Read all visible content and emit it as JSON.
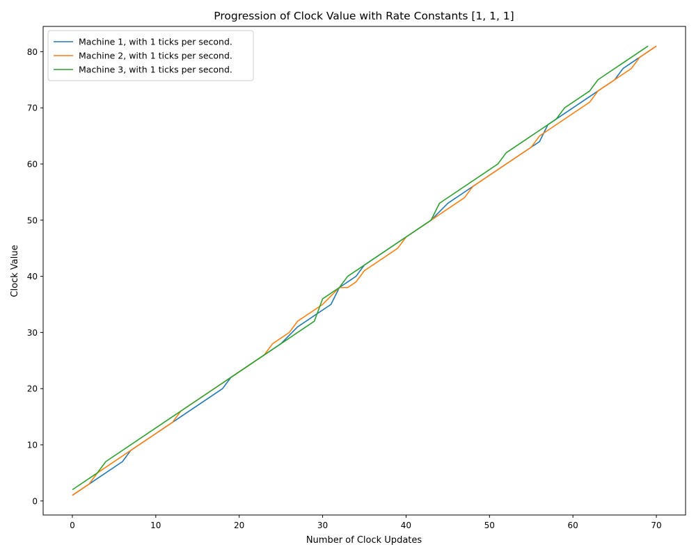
{
  "chart_data": {
    "type": "line",
    "title": "Progression of Clock Value with Rate Constants [1, 1, 1]",
    "xlabel": "Number of Clock Updates",
    "ylabel": "Clock Value",
    "xlim": [
      -3.5,
      73.5
    ],
    "ylim": [
      -2.5,
      84.5
    ],
    "xticks": [
      0,
      10,
      20,
      30,
      40,
      50,
      60,
      70
    ],
    "yticks": [
      0,
      10,
      20,
      30,
      40,
      50,
      60,
      70,
      80
    ],
    "grid": false,
    "legend_position": "top-left",
    "series": [
      {
        "name": "Machine 1, with 1 ticks per second.",
        "color": "#1f77b4",
        "points": [
          [
            0,
            1
          ],
          [
            2,
            3
          ],
          [
            6,
            7
          ],
          [
            7,
            9
          ],
          [
            12,
            14
          ],
          [
            13,
            15
          ],
          [
            18,
            20
          ],
          [
            19,
            22
          ],
          [
            25,
            28
          ],
          [
            27,
            31
          ],
          [
            31,
            35
          ],
          [
            32,
            38
          ],
          [
            34,
            40
          ],
          [
            35,
            42
          ],
          [
            40,
            47
          ],
          [
            43,
            50
          ],
          [
            45,
            53
          ],
          [
            47,
            55
          ],
          [
            48,
            56
          ],
          [
            55,
            63
          ],
          [
            56,
            64
          ],
          [
            57,
            67
          ],
          [
            58,
            68
          ],
          [
            63,
            73
          ],
          [
            65,
            75
          ],
          [
            66,
            77
          ],
          [
            68,
            79
          ],
          [
            70,
            81
          ]
        ]
      },
      {
        "name": "Machine 2, with 1 ticks per second.",
        "color": "#ff7f0e",
        "points": [
          [
            0,
            1
          ],
          [
            2,
            3
          ],
          [
            3,
            5
          ],
          [
            12,
            14
          ],
          [
            13,
            16
          ],
          [
            18,
            21
          ],
          [
            19,
            22
          ],
          [
            23,
            26
          ],
          [
            24,
            28
          ],
          [
            26,
            30
          ],
          [
            27,
            32
          ],
          [
            30,
            35
          ],
          [
            32,
            38
          ],
          [
            33,
            38
          ],
          [
            34,
            39
          ],
          [
            35,
            41
          ],
          [
            39,
            45
          ],
          [
            40,
            47
          ],
          [
            43,
            50
          ],
          [
            47,
            54
          ],
          [
            48,
            56
          ],
          [
            55,
            63
          ],
          [
            56,
            65
          ],
          [
            57,
            66
          ],
          [
            62,
            71
          ],
          [
            63,
            73
          ],
          [
            67,
            77
          ],
          [
            68,
            79
          ],
          [
            70,
            81
          ]
        ]
      },
      {
        "name": "Machine 3, with 1 ticks per second.",
        "color": "#2ca02c",
        "points": [
          [
            0,
            2
          ],
          [
            3,
            5
          ],
          [
            4,
            7
          ],
          [
            12,
            15
          ],
          [
            13,
            16
          ],
          [
            18,
            21
          ],
          [
            19,
            22
          ],
          [
            23,
            26
          ],
          [
            25,
            28
          ],
          [
            29,
            32
          ],
          [
            30,
            36
          ],
          [
            32,
            38
          ],
          [
            33,
            40
          ],
          [
            35,
            42
          ],
          [
            40,
            47
          ],
          [
            43,
            50
          ],
          [
            44,
            53
          ],
          [
            51,
            60
          ],
          [
            52,
            62
          ],
          [
            57,
            67
          ],
          [
            58,
            68
          ],
          [
            59,
            70
          ],
          [
            62,
            73
          ],
          [
            63,
            75
          ],
          [
            69,
            81
          ]
        ]
      }
    ]
  }
}
